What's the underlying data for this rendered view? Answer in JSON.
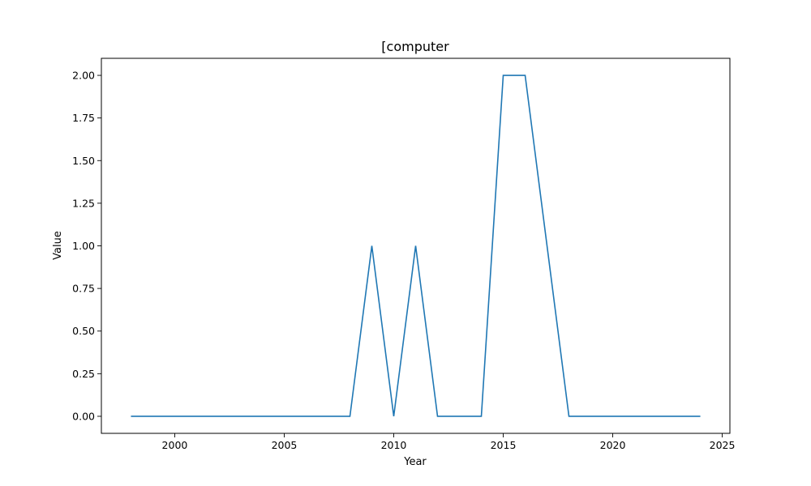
{
  "chart_data": {
    "type": "line",
    "title": "[computer",
    "xlabel": "Year",
    "ylabel": "Value",
    "xlim": [
      1996.65,
      2025.35
    ],
    "ylim": [
      -0.1,
      2.1
    ],
    "xticks": [
      2000,
      2005,
      2010,
      2015,
      2020,
      2025
    ],
    "yticks": [
      0.0,
      0.25,
      0.5,
      0.75,
      1.0,
      1.25,
      1.5,
      1.75,
      2.0
    ],
    "ytick_labels": [
      "0.00",
      "0.25",
      "0.50",
      "0.75",
      "1.00",
      "1.25",
      "1.50",
      "1.75",
      "2.00"
    ],
    "grid": false,
    "series": [
      {
        "color": "#1f77b4",
        "x": [
          1998,
          1999,
          2000,
          2001,
          2002,
          2003,
          2004,
          2005,
          2006,
          2007,
          2008,
          2009,
          2010,
          2011,
          2012,
          2013,
          2014,
          2015,
          2016,
          2017,
          2018,
          2019,
          2020,
          2021,
          2022,
          2023,
          2024
        ],
        "values": [
          0,
          0,
          0,
          0,
          0,
          0,
          0,
          0,
          0,
          0,
          0,
          1,
          0,
          1,
          0,
          0,
          0,
          2,
          2,
          1,
          0,
          0,
          0,
          0,
          0,
          0,
          0
        ]
      }
    ]
  }
}
